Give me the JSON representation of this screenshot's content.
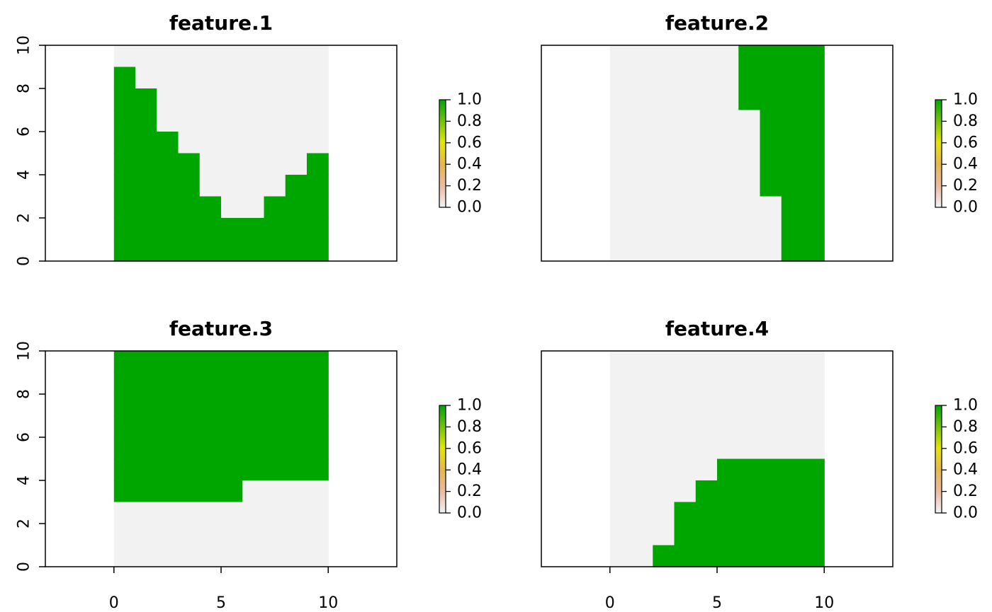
{
  "chart_data": [
    {
      "type": "heatmap",
      "title": "feature.1",
      "xlim": [
        -3.2,
        13.2
      ],
      "ylim": [
        0,
        10
      ],
      "raster_extent": {
        "x": [
          0,
          10
        ],
        "y": [
          0,
          10
        ]
      },
      "xticks": [
        0,
        5,
        10
      ],
      "yticks": [
        0,
        2,
        4,
        6,
        8,
        10
      ],
      "show_x_axis": false,
      "show_y_axis": true,
      "column_heights": [
        9,
        8,
        6,
        5,
        3,
        2,
        2,
        3,
        4,
        5
      ],
      "fill_mode": "below",
      "values": [
        [
          0,
          0,
          0,
          0,
          0,
          0,
          0,
          0,
          0,
          0
        ],
        [
          1,
          0,
          0,
          0,
          0,
          0,
          0,
          0,
          0,
          0
        ],
        [
          1,
          1,
          0,
          0,
          0,
          0,
          0,
          0,
          0,
          0
        ],
        [
          1,
          1,
          0,
          0,
          0,
          0,
          0,
          0,
          0,
          0
        ],
        [
          1,
          1,
          1,
          0,
          0,
          0,
          0,
          0,
          0,
          0
        ],
        [
          1,
          1,
          1,
          1,
          0,
          0,
          0,
          0,
          0,
          1
        ],
        [
          1,
          1,
          1,
          1,
          0,
          0,
          0,
          0,
          1,
          1
        ],
        [
          1,
          1,
          1,
          1,
          1,
          0,
          0,
          1,
          1,
          1
        ],
        [
          1,
          1,
          1,
          1,
          1,
          1,
          1,
          1,
          1,
          1
        ],
        [
          1,
          1,
          1,
          1,
          1,
          1,
          1,
          1,
          1,
          1
        ]
      ]
    },
    {
      "type": "heatmap",
      "title": "feature.2",
      "xlim": [
        -3.2,
        13.2
      ],
      "ylim": [
        0,
        10
      ],
      "raster_extent": {
        "x": [
          0,
          10
        ],
        "y": [
          0,
          10
        ]
      },
      "xticks": [
        0,
        5,
        10
      ],
      "yticks": [
        0,
        2,
        4,
        6,
        8,
        10
      ],
      "show_x_axis": false,
      "show_y_axis": false,
      "column_heights": [
        0,
        0,
        0,
        0,
        0,
        0,
        3,
        7,
        10,
        10
      ],
      "fill_mode": "above",
      "values": [
        [
          0,
          0,
          0,
          0,
          0,
          0,
          1,
          1,
          1,
          1
        ],
        [
          0,
          0,
          0,
          0,
          0,
          0,
          1,
          1,
          1,
          1
        ],
        [
          0,
          0,
          0,
          0,
          0,
          0,
          1,
          1,
          1,
          1
        ],
        [
          0,
          0,
          0,
          0,
          0,
          0,
          0,
          1,
          1,
          1
        ],
        [
          0,
          0,
          0,
          0,
          0,
          0,
          0,
          1,
          1,
          1
        ],
        [
          0,
          0,
          0,
          0,
          0,
          0,
          0,
          1,
          1,
          1
        ],
        [
          0,
          0,
          0,
          0,
          0,
          0,
          0,
          1,
          1,
          1
        ],
        [
          0,
          0,
          0,
          0,
          0,
          0,
          0,
          0,
          1,
          1
        ],
        [
          0,
          0,
          0,
          0,
          0,
          0,
          0,
          0,
          1,
          1
        ],
        [
          0,
          0,
          0,
          0,
          0,
          0,
          0,
          0,
          1,
          1
        ]
      ]
    },
    {
      "type": "heatmap",
      "title": "feature.3",
      "xlim": [
        -3.2,
        13.2
      ],
      "ylim": [
        0,
        10
      ],
      "raster_extent": {
        "x": [
          0,
          10
        ],
        "y": [
          0,
          10
        ]
      },
      "xticks": [
        0,
        5,
        10
      ],
      "yticks": [
        0,
        2,
        4,
        6,
        8,
        10
      ],
      "show_x_axis": true,
      "show_y_axis": true,
      "column_heights": [
        7,
        7,
        7,
        7,
        7,
        7,
        6,
        6,
        6,
        6
      ],
      "fill_mode": "above",
      "values": [
        [
          1,
          1,
          1,
          1,
          1,
          1,
          1,
          1,
          1,
          1
        ],
        [
          1,
          1,
          1,
          1,
          1,
          1,
          1,
          1,
          1,
          1
        ],
        [
          1,
          1,
          1,
          1,
          1,
          1,
          1,
          1,
          1,
          1
        ],
        [
          1,
          1,
          1,
          1,
          1,
          1,
          1,
          1,
          1,
          1
        ],
        [
          1,
          1,
          1,
          1,
          1,
          1,
          1,
          1,
          1,
          1
        ],
        [
          1,
          1,
          1,
          1,
          1,
          1,
          1,
          1,
          1,
          1
        ],
        [
          1,
          1,
          1,
          1,
          1,
          1,
          0,
          0,
          0,
          0
        ],
        [
          0,
          0,
          0,
          0,
          0,
          0,
          0,
          0,
          0,
          0
        ],
        [
          0,
          0,
          0,
          0,
          0,
          0,
          0,
          0,
          0,
          0
        ],
        [
          0,
          0,
          0,
          0,
          0,
          0,
          0,
          0,
          0,
          0
        ]
      ]
    },
    {
      "type": "heatmap",
      "title": "feature.4",
      "xlim": [
        -3.2,
        13.2
      ],
      "ylim": [
        0,
        10
      ],
      "raster_extent": {
        "x": [
          0,
          10
        ],
        "y": [
          0,
          10
        ]
      },
      "xticks": [
        0,
        5,
        10
      ],
      "yticks": [
        0,
        2,
        4,
        6,
        8,
        10
      ],
      "show_x_axis": true,
      "show_y_axis": false,
      "column_heights": [
        0,
        0,
        1,
        3,
        4,
        5,
        5,
        5,
        5,
        5
      ],
      "fill_mode": "below",
      "values": [
        [
          0,
          0,
          0,
          0,
          0,
          0,
          0,
          0,
          0,
          0
        ],
        [
          0,
          0,
          0,
          0,
          0,
          0,
          0,
          0,
          0,
          0
        ],
        [
          0,
          0,
          0,
          0,
          0,
          0,
          0,
          0,
          0,
          0
        ],
        [
          0,
          0,
          0,
          0,
          0,
          0,
          0,
          0,
          0,
          0
        ],
        [
          0,
          0,
          0,
          0,
          0,
          0,
          0,
          0,
          0,
          0
        ],
        [
          0,
          0,
          0,
          0,
          0,
          1,
          1,
          1,
          1,
          1
        ],
        [
          0,
          0,
          0,
          0,
          1,
          1,
          1,
          1,
          1,
          1
        ],
        [
          0,
          0,
          0,
          1,
          1,
          1,
          1,
          1,
          1,
          1
        ],
        [
          0,
          0,
          0,
          1,
          1,
          1,
          1,
          1,
          1,
          1
        ],
        [
          0,
          0,
          1,
          1,
          1,
          1,
          1,
          1,
          1,
          1
        ]
      ]
    }
  ],
  "legend": {
    "labels": [
      "1.0",
      "0.8",
      "0.6",
      "0.4",
      "0.2",
      "0.0"
    ],
    "min": 0,
    "max": 1,
    "gradient_colors": [
      "#00A600",
      "#E6E600",
      "#EAB64E",
      "#EEB99F",
      "#F2F2F2"
    ],
    "cell_colors": {
      "zero": "#F2F2F2",
      "one": "#00A600"
    }
  }
}
